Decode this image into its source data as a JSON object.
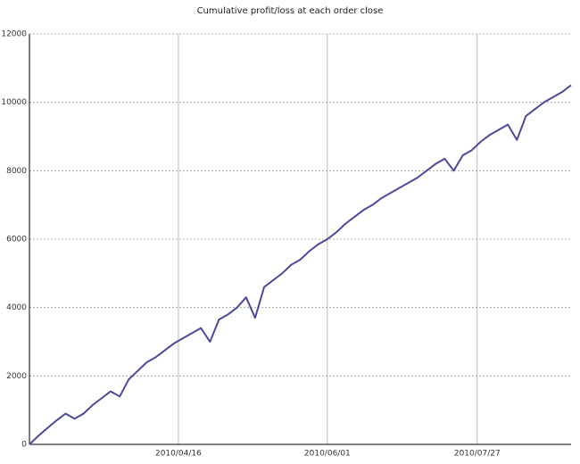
{
  "chart_data": {
    "type": "line",
    "title": "Cumulative profit/loss at each order close",
    "x": [
      0,
      1,
      2,
      3,
      4,
      5,
      6,
      7,
      8,
      9,
      10,
      11,
      12,
      13,
      14,
      15,
      16,
      17,
      18,
      19,
      20,
      21,
      22,
      23,
      24,
      25,
      26,
      27,
      28,
      29,
      30,
      31,
      32,
      33,
      34,
      35,
      36,
      37,
      38,
      39,
      40,
      41,
      42,
      43,
      44,
      45,
      46,
      47,
      48,
      49,
      50,
      51,
      52,
      53,
      54,
      55,
      56,
      57,
      58,
      59,
      60
    ],
    "series": [
      {
        "color": "#4a4a9a",
        "values": [
          0,
          250,
          480,
          700,
          900,
          750,
          900,
          1150,
          1350,
          1550,
          1400,
          1900,
          2150,
          2400,
          2550,
          2750,
          2950,
          3100,
          3250,
          3400,
          3000,
          3650,
          3800,
          4000,
          4300,
          3700,
          4600,
          4800,
          5000,
          5250,
          5400,
          5650,
          5850,
          6000,
          6200,
          6450,
          6650,
          6850,
          7000,
          7200,
          7350,
          7500,
          7650,
          7800,
          8000,
          8200,
          8350,
          8000,
          8450,
          8600,
          8850,
          9050,
          9200,
          9350,
          8900,
          9600,
          9800,
          10000,
          10150,
          10300,
          10500
        ]
      }
    ],
    "xlim": [
      0,
      60
    ],
    "xticks": [
      {
        "value": 16.5,
        "label": "2010/04/16"
      },
      {
        "value": 33,
        "label": "2010/06/01"
      },
      {
        "value": 49.6,
        "label": "2010/07/27"
      }
    ],
    "ylim": [
      0,
      12000
    ],
    "yticks": [
      0,
      2000,
      4000,
      6000,
      8000,
      10000,
      12000
    ],
    "grid": true
  }
}
